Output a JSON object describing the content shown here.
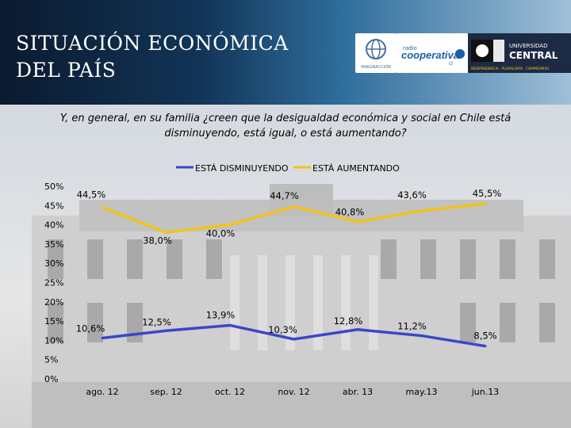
{
  "header": {
    "title": "SITUACIÓN ECONÓMICA DEL PAÍS",
    "logos": {
      "imagenes": "IMAGINACCIÓN",
      "cooperativa_prefix": "radio",
      "cooperativa": "cooperativa",
      "cooperativa_sub": "cl",
      "central_top": "UNIVERSIDAD",
      "central_name": "CENTRAL",
      "central_tagline": "INDEPENDENCIA · PLURALISMO · COMPROMISO"
    }
  },
  "question": "Y, en general, en su familia ¿creen que la desigualdad económica y social en Chile está disminuyendo, está igual, o está aumentando?",
  "colors": {
    "disminuyendo": "#3b46c9",
    "aumentando": "#f2c318",
    "header_dark": "#0b1a2e"
  },
  "chart_data": {
    "type": "line",
    "categories": [
      "ago. 12",
      "sep. 12",
      "oct. 12",
      "nov. 12",
      "abr. 13",
      "may.13",
      "jun.13"
    ],
    "series": [
      {
        "name": "ESTÁ DISMINUYENDO",
        "values": [
          10.6,
          12.5,
          13.9,
          10.3,
          12.8,
          11.2,
          8.5
        ],
        "labels": [
          "10,6%",
          "12,5%",
          "13,9%",
          "10,3%",
          "12,8%",
          "11,2%",
          "8,5%"
        ]
      },
      {
        "name": "ESTÁ AUMENTANDO",
        "values": [
          44.5,
          38.0,
          40.0,
          44.7,
          40.8,
          43.6,
          45.5
        ],
        "labels": [
          "44,5%",
          "38,0%",
          "40,0%",
          "44,7%",
          "40,8%",
          "43,6%",
          "45,5%"
        ]
      }
    ],
    "yticks": [
      "0%",
      "5%",
      "10%",
      "15%",
      "20%",
      "25%",
      "30%",
      "35%",
      "40%",
      "45%",
      "50%"
    ],
    "ylim": [
      0,
      50
    ],
    "legend_position": "top-center",
    "grid": false
  }
}
